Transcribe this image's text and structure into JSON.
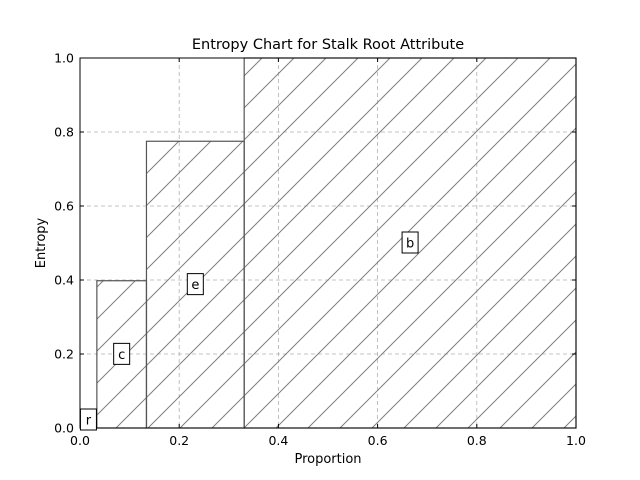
{
  "chart_data": {
    "type": "bar",
    "title": "Entropy Chart for Stalk Root Attribute",
    "xlabel": "Proportion",
    "ylabel": "Entropy",
    "xlim": [
      0.0,
      1.0
    ],
    "ylim": [
      0.0,
      1.0
    ],
    "grid": true,
    "xticks": [
      "0.0",
      "0.2",
      "0.4",
      "0.6",
      "0.8",
      "1.0"
    ],
    "yticks": [
      "0.0",
      "0.2",
      "0.4",
      "0.6",
      "0.8",
      "1.0"
    ],
    "bars": [
      {
        "label": "r",
        "x_start": 0.0,
        "x_end": 0.034,
        "entropy": 0.0
      },
      {
        "label": "c",
        "x_start": 0.034,
        "x_end": 0.134,
        "entropy": 0.398
      },
      {
        "label": "e",
        "x_start": 0.134,
        "x_end": 0.331,
        "entropy": 0.775
      },
      {
        "label": "b",
        "x_start": 0.331,
        "x_end": 1.0,
        "entropy": 1.0
      }
    ],
    "bar_stroke_color": "#555555",
    "hatch_color": "#808080"
  }
}
